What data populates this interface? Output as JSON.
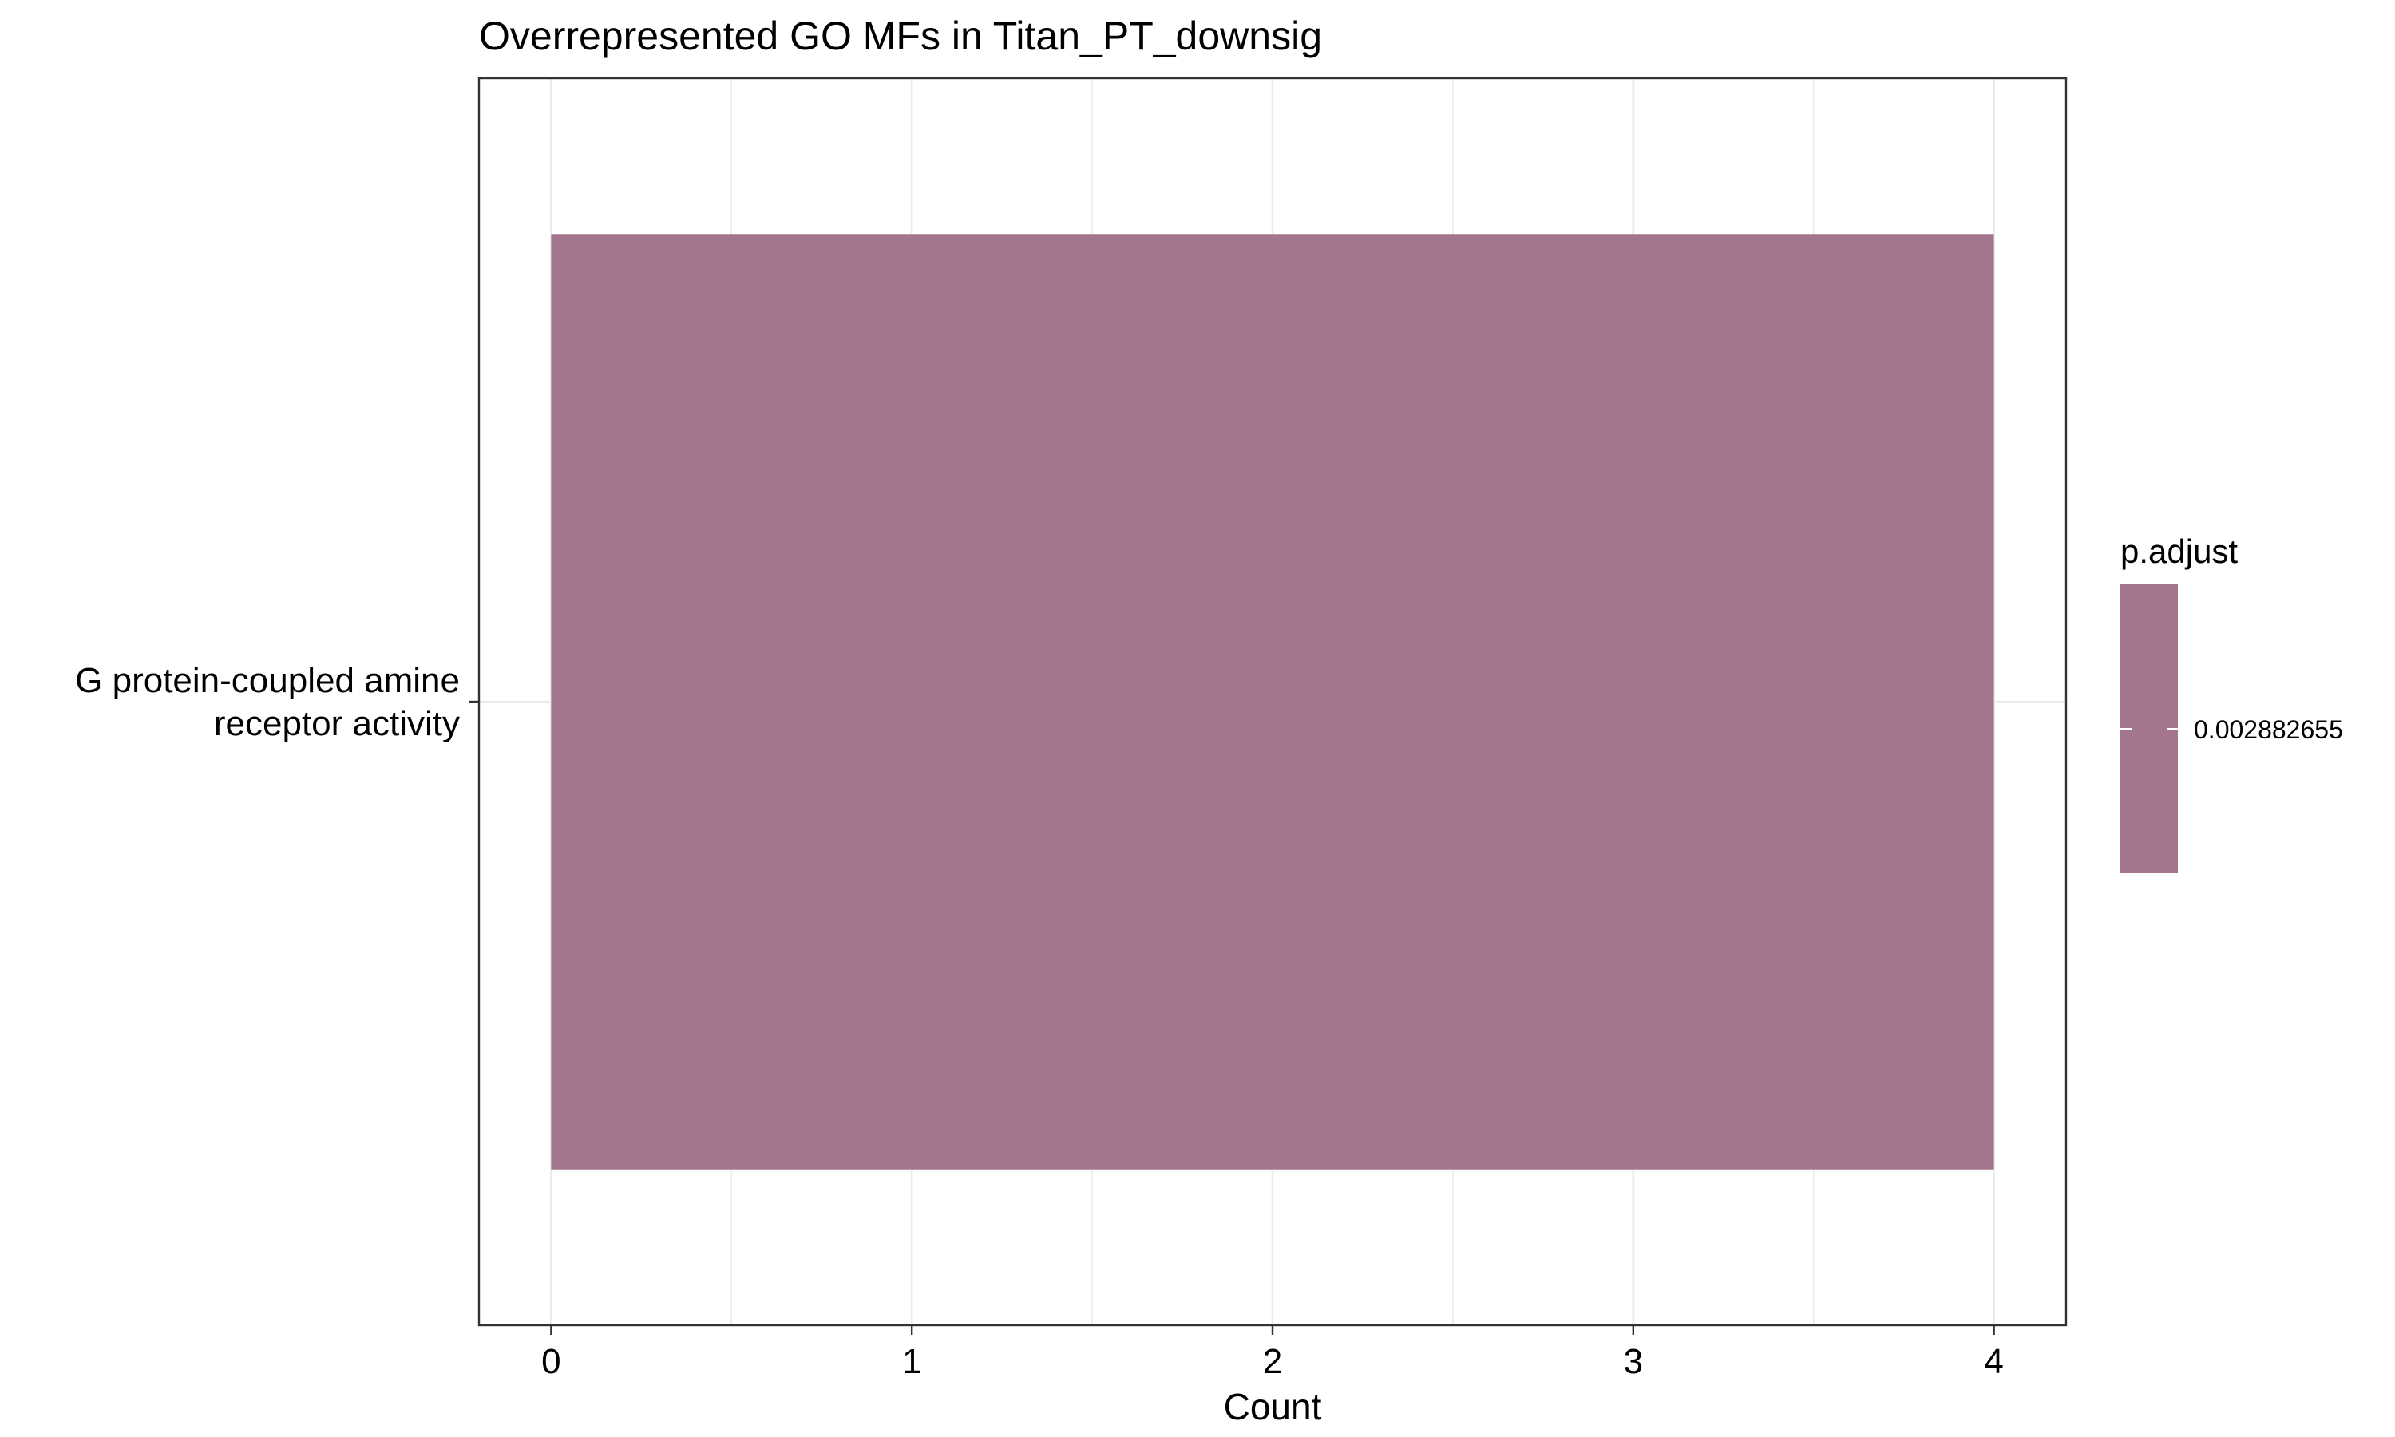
{
  "chart_data": {
    "type": "bar",
    "orientation": "horizontal",
    "title": "Overrepresented GO MFs in Titan_PT_downsig",
    "xlabel": "Count",
    "ylabel": "",
    "xlim": [
      -0.2,
      4.2
    ],
    "x_ticks": [
      "0",
      "1",
      "2",
      "3",
      "4"
    ],
    "grid": true,
    "categories": [
      "G protein-coupled amine\nreceptor activity"
    ],
    "category_lines": [
      [
        "G protein-coupled amine",
        "receptor activity"
      ]
    ],
    "values": [
      4
    ],
    "color_values": [
      0.002882655
    ],
    "bar_color": "#a3768e",
    "legend": {
      "position": "right",
      "title": "p.adjust",
      "labels": [
        "0.002882655"
      ],
      "colors": [
        "#a3768e"
      ]
    }
  }
}
